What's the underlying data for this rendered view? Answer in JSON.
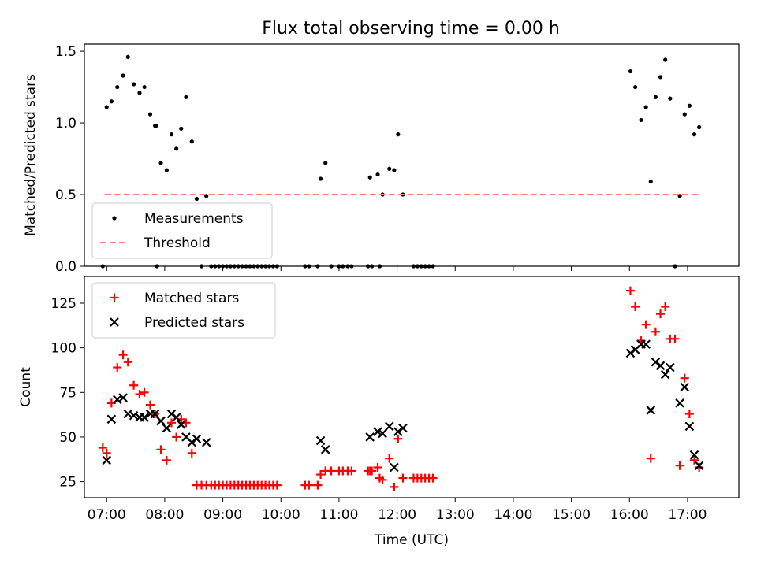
{
  "figure": {
    "title": "Flux total observing time = 0.00 h"
  },
  "chart_data": [
    {
      "type": "scatter",
      "panel": "top",
      "title": "Flux total observing time = 0.00 h",
      "xlabel": "",
      "ylabel": "Matched/Predicted stars",
      "xlim": [
        "06:37",
        "17:53"
      ],
      "ylim": [
        0.0,
        1.55
      ],
      "yticks": [
        0.0,
        0.5,
        1.0,
        1.5
      ],
      "ytick_labels": [
        "0.0",
        "0.5",
        "1.0",
        "1.5"
      ],
      "grid": false,
      "legend": "lower-left",
      "series": [
        {
          "name": "Measurements",
          "marker": "dot",
          "color": "#000000",
          "points": [
            [
              "06:56",
              0.0
            ],
            [
              "07:00",
              1.11
            ],
            [
              "07:05",
              1.15
            ],
            [
              "07:11",
              1.25
            ],
            [
              "07:17",
              1.33
            ],
            [
              "07:22",
              1.46
            ],
            [
              "07:28",
              1.27
            ],
            [
              "07:34",
              1.21
            ],
            [
              "07:39",
              1.25
            ],
            [
              "07:45",
              1.06
            ],
            [
              "07:50",
              0.98
            ],
            [
              "07:51",
              0.98
            ],
            [
              "07:52",
              0.0
            ],
            [
              "07:56",
              0.72
            ],
            [
              "08:02",
              0.67
            ],
            [
              "08:07",
              0.92
            ],
            [
              "08:12",
              0.82
            ],
            [
              "08:17",
              0.96
            ],
            [
              "08:22",
              1.18
            ],
            [
              "08:28",
              0.87
            ],
            [
              "08:33",
              0.47
            ],
            [
              "08:38",
              0.0
            ],
            [
              "08:43",
              0.49
            ],
            [
              "08:48",
              0.0
            ],
            [
              "08:52",
              0.0
            ],
            [
              "08:56",
              0.0
            ],
            [
              "09:00",
              0.0
            ],
            [
              "09:04",
              0.0
            ],
            [
              "09:08",
              0.0
            ],
            [
              "09:12",
              0.0
            ],
            [
              "09:16",
              0.0
            ],
            [
              "09:20",
              0.0
            ],
            [
              "09:24",
              0.0
            ],
            [
              "09:28",
              0.0
            ],
            [
              "09:32",
              0.0
            ],
            [
              "09:36",
              0.0
            ],
            [
              "09:40",
              0.0
            ],
            [
              "09:44",
              0.0
            ],
            [
              "09:48",
              0.0
            ],
            [
              "09:52",
              0.0
            ],
            [
              "09:56",
              0.0
            ],
            [
              "10:25",
              0.0
            ],
            [
              "10:29",
              0.0
            ],
            [
              "10:38",
              0.0
            ],
            [
              "10:41",
              0.61
            ],
            [
              "10:46",
              0.72
            ],
            [
              "10:52",
              0.0
            ],
            [
              "11:00",
              0.0
            ],
            [
              "11:04",
              0.0
            ],
            [
              "11:09",
              0.0
            ],
            [
              "11:13",
              0.0
            ],
            [
              "11:30",
              0.0
            ],
            [
              "11:32",
              0.62
            ],
            [
              "11:34",
              0.0
            ],
            [
              "11:40",
              0.64
            ],
            [
              "11:42",
              0.0
            ],
            [
              "11:45",
              0.5
            ],
            [
              "11:52",
              0.68
            ],
            [
              "11:57",
              0.67
            ],
            [
              "12:01",
              0.92
            ],
            [
              "12:06",
              0.5
            ],
            [
              "12:17",
              0.0
            ],
            [
              "12:21",
              0.0
            ],
            [
              "12:25",
              0.0
            ],
            [
              "12:29",
              0.0
            ],
            [
              "12:33",
              0.0
            ],
            [
              "12:37",
              0.0
            ],
            [
              "16:01",
              1.36
            ],
            [
              "16:06",
              1.25
            ],
            [
              "16:12",
              1.02
            ],
            [
              "16:17",
              1.11
            ],
            [
              "16:22",
              0.59
            ],
            [
              "16:27",
              1.18
            ],
            [
              "16:32",
              1.32
            ],
            [
              "16:37",
              1.44
            ],
            [
              "16:42",
              1.17
            ],
            [
              "16:47",
              0.0
            ],
            [
              "16:52",
              0.49
            ],
            [
              "16:57",
              1.06
            ],
            [
              "17:02",
              1.12
            ],
            [
              "17:07",
              0.92
            ],
            [
              "17:12",
              0.97
            ]
          ]
        },
        {
          "name": "Threshold",
          "marker": "dashed-line",
          "color": "#ff7f7f",
          "points": [
            [
              "06:58",
              0.5
            ],
            [
              "17:12",
              0.5
            ]
          ]
        }
      ]
    },
    {
      "type": "scatter",
      "panel": "bottom",
      "xlabel": "Time (UTC)",
      "ylabel": "Count",
      "xlim": [
        "06:37",
        "17:53"
      ],
      "ylim": [
        16,
        140
      ],
      "xticks": [
        "07:00",
        "08:00",
        "09:00",
        "10:00",
        "11:00",
        "12:00",
        "13:00",
        "14:00",
        "15:00",
        "16:00",
        "17:00"
      ],
      "yticks": [
        25,
        50,
        75,
        100,
        125
      ],
      "ytick_labels": [
        "25",
        "50",
        "75",
        "100",
        "125"
      ],
      "grid": false,
      "legend": "upper-left",
      "series": [
        {
          "name": "Matched stars",
          "marker": "plus",
          "color": "#ff0000",
          "points": [
            [
              "06:56",
              44
            ],
            [
              "07:00",
              41
            ],
            [
              "07:05",
              69
            ],
            [
              "07:11",
              89
            ],
            [
              "07:17",
              96
            ],
            [
              "07:22",
              92
            ],
            [
              "07:28",
              79
            ],
            [
              "07:34",
              74
            ],
            [
              "07:39",
              75
            ],
            [
              "07:45",
              68
            ],
            [
              "07:50",
              63
            ],
            [
              "07:56",
              43
            ],
            [
              "08:02",
              37
            ],
            [
              "08:07",
              58
            ],
            [
              "08:12",
              50
            ],
            [
              "08:17",
              60
            ],
            [
              "08:22",
              58
            ],
            [
              "08:28",
              41
            ],
            [
              "08:33",
              23
            ],
            [
              "08:38",
              23
            ],
            [
              "08:43",
              23
            ],
            [
              "08:48",
              23
            ],
            [
              "08:52",
              23
            ],
            [
              "08:56",
              23
            ],
            [
              "09:00",
              23
            ],
            [
              "09:04",
              23
            ],
            [
              "09:08",
              23
            ],
            [
              "09:12",
              23
            ],
            [
              "09:16",
              23
            ],
            [
              "09:20",
              23
            ],
            [
              "09:24",
              23
            ],
            [
              "09:28",
              23
            ],
            [
              "09:32",
              23
            ],
            [
              "09:36",
              23
            ],
            [
              "09:40",
              23
            ],
            [
              "09:44",
              23
            ],
            [
              "09:48",
              23
            ],
            [
              "09:52",
              23
            ],
            [
              "09:56",
              23
            ],
            [
              "10:25",
              23
            ],
            [
              "10:29",
              23
            ],
            [
              "10:38",
              23
            ],
            [
              "10:41",
              29
            ],
            [
              "10:46",
              31
            ],
            [
              "10:52",
              31
            ],
            [
              "11:00",
              31
            ],
            [
              "11:04",
              31
            ],
            [
              "11:09",
              31
            ],
            [
              "11:13",
              31
            ],
            [
              "11:30",
              31
            ],
            [
              "11:32",
              31
            ],
            [
              "11:34",
              31
            ],
            [
              "11:40",
              33
            ],
            [
              "11:42",
              27
            ],
            [
              "11:45",
              26
            ],
            [
              "11:52",
              38
            ],
            [
              "11:57",
              22
            ],
            [
              "12:01",
              49
            ],
            [
              "12:06",
              27
            ],
            [
              "12:17",
              27
            ],
            [
              "12:21",
              27
            ],
            [
              "12:25",
              27
            ],
            [
              "12:29",
              27
            ],
            [
              "12:33",
              27
            ],
            [
              "12:37",
              27
            ],
            [
              "16:01",
              132
            ],
            [
              "16:06",
              123
            ],
            [
              "16:12",
              104
            ],
            [
              "16:17",
              113
            ],
            [
              "16:22",
              38
            ],
            [
              "16:27",
              109
            ],
            [
              "16:32",
              119
            ],
            [
              "16:37",
              123
            ],
            [
              "16:42",
              105
            ],
            [
              "16:47",
              105
            ],
            [
              "16:52",
              34
            ],
            [
              "16:57",
              83
            ],
            [
              "17:02",
              63
            ],
            [
              "17:07",
              37
            ],
            [
              "17:12",
              33
            ]
          ]
        },
        {
          "name": "Predicted stars",
          "marker": "x",
          "color": "#000000",
          "points": [
            [
              "07:00",
              37
            ],
            [
              "07:05",
              60
            ],
            [
              "07:11",
              71
            ],
            [
              "07:17",
              72
            ],
            [
              "07:22",
              63
            ],
            [
              "07:28",
              62
            ],
            [
              "07:34",
              61
            ],
            [
              "07:39",
              61
            ],
            [
              "07:45",
              63
            ],
            [
              "07:50",
              63
            ],
            [
              "07:56",
              59
            ],
            [
              "08:02",
              55
            ],
            [
              "08:07",
              63
            ],
            [
              "08:12",
              61
            ],
            [
              "08:17",
              57
            ],
            [
              "08:22",
              50
            ],
            [
              "08:28",
              47
            ],
            [
              "08:33",
              49
            ],
            [
              "08:43",
              47
            ],
            [
              "10:41",
              48
            ],
            [
              "10:46",
              43
            ],
            [
              "11:32",
              50
            ],
            [
              "11:40",
              53
            ],
            [
              "11:45",
              52
            ],
            [
              "11:52",
              56
            ],
            [
              "11:57",
              33
            ],
            [
              "12:01",
              53
            ],
            [
              "12:06",
              55
            ],
            [
              "16:01",
              97
            ],
            [
              "16:06",
              99
            ],
            [
              "16:12",
              102
            ],
            [
              "16:17",
              102
            ],
            [
              "16:22",
              65
            ],
            [
              "16:27",
              92
            ],
            [
              "16:32",
              90
            ],
            [
              "16:37",
              85
            ],
            [
              "16:42",
              89
            ],
            [
              "16:52",
              69
            ],
            [
              "16:57",
              78
            ],
            [
              "17:02",
              56
            ],
            [
              "17:07",
              40
            ],
            [
              "17:12",
              34
            ]
          ]
        }
      ]
    }
  ]
}
